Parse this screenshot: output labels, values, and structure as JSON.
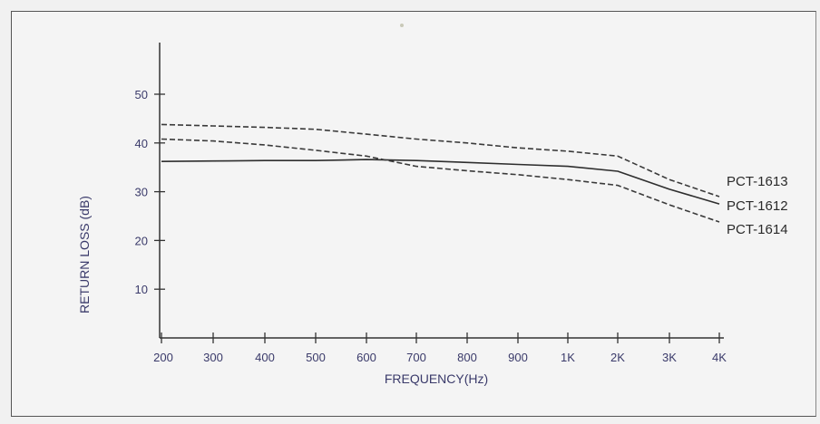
{
  "chart_data": {
    "type": "line",
    "title": "",
    "xlabel": "FREQUENCY(Hz)",
    "ylabel": "RETURN LOSS (dB)",
    "categories": [
      "200",
      "300",
      "400",
      "500",
      "600",
      "700",
      "800",
      "900",
      "1K",
      "2K",
      "3K",
      "4K"
    ],
    "yticks": [
      "10",
      "20",
      "30",
      "40",
      "50"
    ],
    "ylim": [
      0,
      60
    ],
    "grid": false,
    "series": [
      {
        "name": "PCT-1613",
        "style": "dashed",
        "color": "#3a3a3a",
        "values": [
          43.8,
          43.5,
          43.2,
          42.8,
          41.8,
          40.8,
          40.0,
          39.0,
          38.3,
          37.3,
          32.5,
          29.0
        ]
      },
      {
        "name": "PCT-1612",
        "style": "solid",
        "color": "#2e2e2e",
        "values": [
          36.2,
          36.3,
          36.4,
          36.4,
          36.6,
          36.4,
          36.0,
          35.6,
          35.2,
          34.2,
          30.5,
          27.5
        ]
      },
      {
        "name": "PCT-1614",
        "style": "dashed",
        "color": "#3a3a3a",
        "values": [
          40.8,
          40.4,
          39.6,
          38.5,
          37.3,
          35.2,
          34.3,
          33.5,
          32.5,
          31.3,
          27.3,
          23.8
        ]
      }
    ]
  }
}
